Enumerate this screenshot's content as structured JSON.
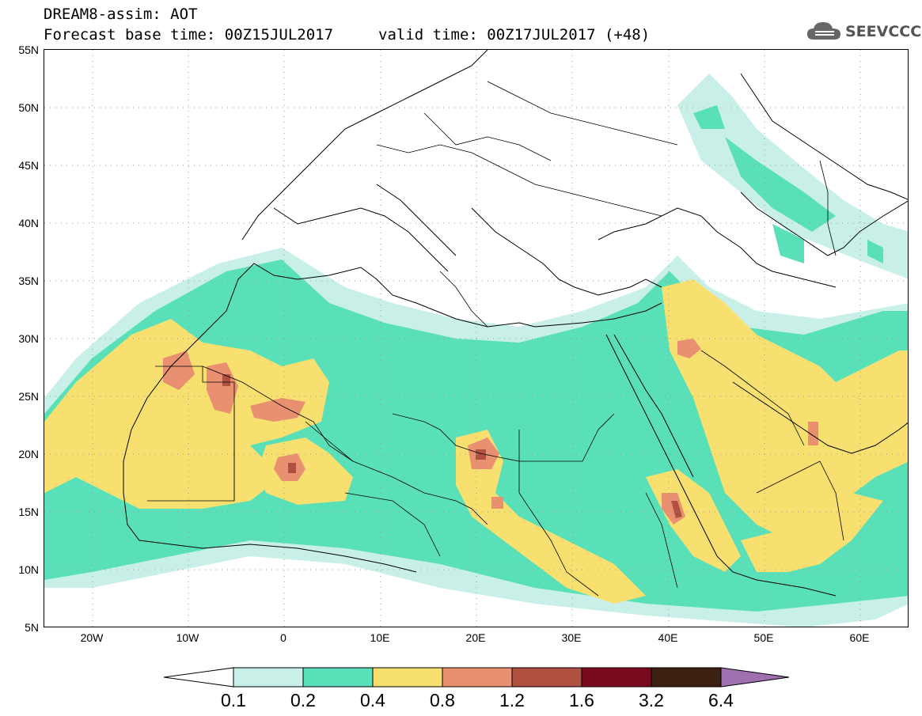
{
  "header": {
    "title": "DREAM8-assim: AOT",
    "forecast_base": "Forecast base time: 00Z15JUL2017",
    "valid_time": "valid time: 00Z17JUL2017 (+48)"
  },
  "logo": {
    "text": "SEEVCCC",
    "icon": "cloud-icon"
  },
  "map": {
    "lat_labels": [
      "55N",
      "50N",
      "45N",
      "40N",
      "35N",
      "30N",
      "25N",
      "20N",
      "15N",
      "10N",
      "5N"
    ],
    "lon_labels": [
      "20W",
      "10W",
      "0",
      "10E",
      "20E",
      "30E",
      "40E",
      "50E",
      "60E"
    ],
    "lat_range": [
      5,
      55
    ],
    "lon_range": [
      -25,
      65
    ]
  },
  "legend": {
    "labels": [
      "0.1",
      "0.2",
      "0.4",
      "0.8",
      "1.2",
      "1.6",
      "3.2",
      "6.4"
    ],
    "colors": [
      "#ffffff",
      "#c8f0e8",
      "#5ae0b8",
      "#f8e070",
      "#e89070",
      "#b05040",
      "#7a0a20",
      "#3c2010",
      "#a070b0"
    ]
  }
}
